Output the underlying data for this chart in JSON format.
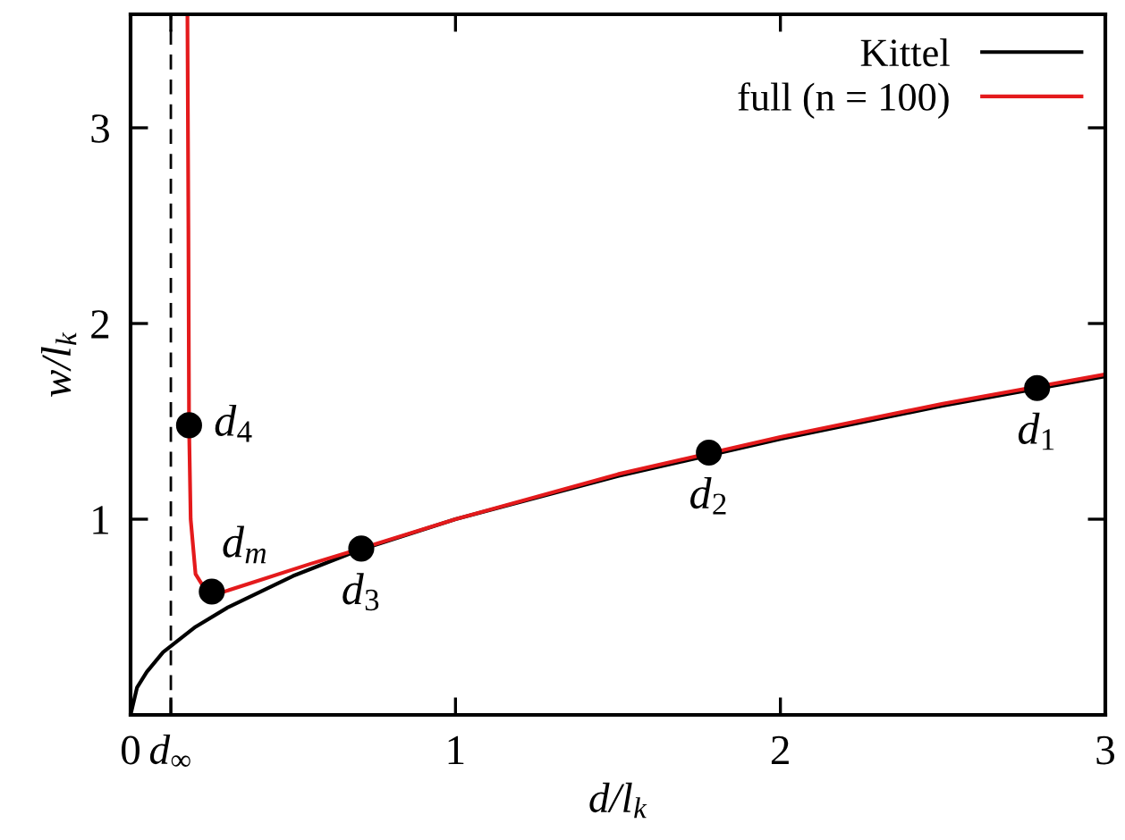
{
  "chart_data": {
    "type": "line",
    "xlabel": "d/l$_{k}$",
    "ylabel": "w/l$_{k}$",
    "xlim": [
      0,
      3
    ],
    "ylim": [
      0,
      3.58
    ],
    "xticks": [
      0,
      {
        "value": 0.124,
        "label": "d$_{∞}$"
      },
      1,
      2,
      3
    ],
    "yticks": [
      1,
      2,
      3
    ],
    "grid": false,
    "legend": "top right",
    "ref_lines": [
      {
        "axis": "x",
        "value": 0.124,
        "label": null,
        "color": "#000000",
        "line_style": "dashed"
      }
    ],
    "series": [
      {
        "name": "Kittel",
        "color": "#000000",
        "x": [
          0,
          0.02,
          0.05,
          0.1,
          0.2,
          0.3,
          0.5,
          0.7,
          1,
          1.5,
          2,
          2.5,
          3
        ],
        "values": [
          0,
          0.14,
          0.22,
          0.32,
          0.45,
          0.55,
          0.71,
          0.84,
          1.0,
          1.22,
          1.41,
          1.58,
          1.73
        ]
      },
      {
        "name": "full (n = 100)",
        "color": "#e41a1c",
        "x": [
          0.175,
          0.178,
          0.18,
          0.185,
          0.2,
          0.23,
          0.27,
          0.4,
          0.55,
          0.71,
          1,
          1.5,
          2,
          2.5,
          3
        ],
        "values": [
          3.58,
          2.5,
          1.48,
          1.0,
          0.72,
          0.64,
          0.62,
          0.69,
          0.77,
          0.85,
          1.0,
          1.23,
          1.42,
          1.59,
          1.74
        ]
      },
      {
        "type": "scatter",
        "color": "#000000",
        "marker": "circle",
        "x": [
          0.18,
          0.25,
          0.71,
          1.78,
          2.79
        ],
        "values": [
          1.48,
          0.63,
          0.85,
          1.34,
          1.67
        ]
      }
    ],
    "annotations": [
      {
        "text": "d$_{4}$",
        "x": 0.18,
        "y": 1.48
      },
      {
        "text": "d$_{m}$",
        "x": 0.25,
        "y": 0.63
      },
      {
        "text": "d$_{3}$",
        "x": 0.71,
        "y": 0.85
      },
      {
        "text": "d$_{2}$",
        "x": 1.78,
        "y": 1.34
      },
      {
        "text": "d$_{1}$",
        "x": 2.79,
        "y": 1.67
      }
    ]
  }
}
